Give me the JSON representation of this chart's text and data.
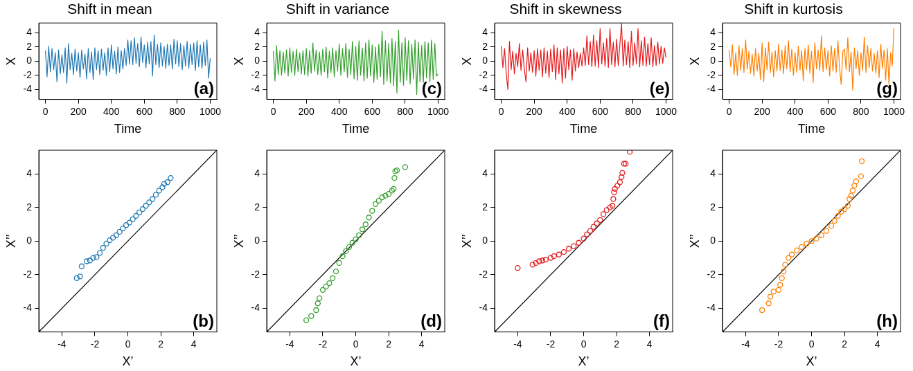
{
  "chart_data": [
    {
      "type": "line",
      "title": "Shift in mean",
      "xlabel": "Time",
      "ylabel": "X",
      "annotations": [
        "(a)"
      ],
      "xlim": [
        -40,
        1040
      ],
      "xticks": [
        0,
        200,
        400,
        600,
        800,
        1000
      ],
      "ylim": [
        -5.4,
        5.4
      ],
      "yticks": [
        -4,
        -2,
        0,
        2,
        4
      ],
      "x": [
        0,
        10,
        20,
        30,
        40,
        50,
        60,
        70,
        80,
        90,
        100,
        110,
        120,
        130,
        140,
        150,
        160,
        170,
        180,
        190,
        200,
        210,
        220,
        230,
        240,
        250,
        260,
        270,
        280,
        290,
        300,
        310,
        320,
        330,
        340,
        350,
        360,
        370,
        380,
        390,
        400,
        410,
        420,
        430,
        440,
        450,
        460,
        470,
        480,
        490,
        500,
        510,
        520,
        530,
        540,
        550,
        560,
        570,
        580,
        590,
        600,
        610,
        620,
        630,
        640,
        650,
        660,
        670,
        680,
        690,
        700,
        710,
        720,
        730,
        740,
        750,
        760,
        770,
        780,
        790,
        800,
        810,
        820,
        830,
        840,
        850,
        860,
        870,
        880,
        890,
        900,
        910,
        920,
        930,
        940,
        950,
        960,
        970,
        980,
        990,
        1000
      ],
      "series": [
        {
          "color": "#1f78b4",
          "values": [
            1.5,
            -2.2,
            2.1,
            -1.5,
            1.8,
            -1.2,
            1.2,
            -2.9,
            1.6,
            -1.8,
            0.9,
            -1.6,
            1.9,
            -3.1,
            2.5,
            -1.2,
            1.1,
            -1.9,
            1.7,
            -1.4,
            1.2,
            -2.3,
            1.6,
            -1.1,
            1.0,
            -2.5,
            1.8,
            -1.6,
            1.3,
            -2.6,
            1.9,
            -1.2,
            1.5,
            -1.9,
            1.7,
            -1.3,
            1.2,
            -2.0,
            1.9,
            -1.5,
            2.3,
            -1.1,
            1.4,
            -1.8,
            2.0,
            -1.6,
            1.5,
            -1.1,
            1.8,
            -0.6,
            3.0,
            -0.4,
            2.9,
            -0.5,
            3.3,
            -0.3,
            2.5,
            -0.8,
            3.4,
            -0.2,
            2.3,
            -0.9,
            2.7,
            -0.4,
            2.8,
            -2.1,
            3.7,
            -0.5,
            2.4,
            -0.9,
            2.6,
            -0.7,
            2.1,
            -1.0,
            2.4,
            -0.6,
            2.3,
            -1.1,
            3.1,
            -0.4,
            2.9,
            -0.8,
            2.5,
            -1.2,
            2.2,
            -0.7,
            2.8,
            -1.0,
            2.4,
            -0.5,
            2.6,
            -1.3,
            2.9,
            -0.8,
            2.3,
            -1.0,
            2.7,
            -0.6,
            3.0,
            -2.4,
            0.4
          ]
        }
      ]
    },
    {
      "type": "line",
      "title": "Shift in variance",
      "xlabel": "Time",
      "ylabel": "X",
      "annotations": [
        "(c)"
      ],
      "xlim": [
        -40,
        1040
      ],
      "xticks": [
        0,
        200,
        400,
        600,
        800,
        1000
      ],
      "ylim": [
        -5.4,
        5.4
      ],
      "yticks": [
        -4,
        -2,
        0,
        2,
        4
      ],
      "x": [
        0,
        10,
        20,
        30,
        40,
        50,
        60,
        70,
        80,
        90,
        100,
        110,
        120,
        130,
        140,
        150,
        160,
        170,
        180,
        190,
        200,
        210,
        220,
        230,
        240,
        250,
        260,
        270,
        280,
        290,
        300,
        310,
        320,
        330,
        340,
        350,
        360,
        370,
        380,
        390,
        400,
        410,
        420,
        430,
        440,
        450,
        460,
        470,
        480,
        490,
        500,
        510,
        520,
        530,
        540,
        550,
        560,
        570,
        580,
        590,
        600,
        610,
        620,
        630,
        640,
        650,
        660,
        670,
        680,
        690,
        700,
        710,
        720,
        730,
        740,
        750,
        760,
        770,
        780,
        790,
        800,
        810,
        820,
        830,
        840,
        850,
        860,
        870,
        880,
        890,
        900,
        910,
        920,
        930,
        940,
        950,
        960,
        970,
        980,
        990,
        1000
      ],
      "series": [
        {
          "color": "#33a02c",
          "values": [
            1.4,
            -2.8,
            2.2,
            -1.9,
            1.5,
            -2.0,
            1.3,
            -1.7,
            1.6,
            -2.1,
            1.9,
            -1.6,
            1.4,
            -2.0,
            1.7,
            -1.5,
            1.2,
            -1.8,
            1.5,
            -1.9,
            1.8,
            -2.1,
            1.5,
            -1.7,
            2.6,
            -1.4,
            1.6,
            -1.9,
            1.3,
            -2.0,
            1.7,
            -1.5,
            2.0,
            -2.4,
            1.4,
            -1.6,
            1.9,
            -2.2,
            1.5,
            -1.4,
            2.4,
            -2.0,
            1.8,
            -1.5,
            2.5,
            -2.3,
            1.7,
            -1.9,
            2.8,
            -2.5,
            2.1,
            -2.7,
            2.9,
            -2.0,
            1.9,
            -2.8,
            2.6,
            -2.4,
            3.0,
            -2.1,
            2.3,
            -3.0,
            2.0,
            -2.6,
            2.4,
            -2.2,
            4.2,
            -3.3,
            2.9,
            -2.8,
            2.5,
            -3.1,
            3.2,
            -3.5,
            2.8,
            -4.5,
            4.4,
            -3.0,
            2.6,
            -3.4,
            3.3,
            -2.7,
            2.9,
            -3.2,
            2.4,
            -2.5,
            3.0,
            -4.7,
            2.7,
            -2.9,
            2.2,
            -3.0,
            2.8,
            -2.4,
            2.6,
            -2.9,
            3.0,
            -2.6,
            2.5,
            -2.1,
            -1.8
          ]
        }
      ]
    },
    {
      "type": "line",
      "title": "Shift in skewness",
      "xlabel": "Time",
      "ylabel": "X",
      "annotations": [
        "(e)"
      ],
      "xlim": [
        -40,
        1040
      ],
      "xticks": [
        0,
        200,
        400,
        600,
        800,
        1000
      ],
      "ylim": [
        -5.4,
        5.4
      ],
      "yticks": [
        -4,
        -2,
        0,
        2,
        4
      ],
      "x": [
        0,
        10,
        20,
        30,
        40,
        50,
        60,
        70,
        80,
        90,
        100,
        110,
        120,
        130,
        140,
        150,
        160,
        170,
        180,
        190,
        200,
        210,
        220,
        230,
        240,
        250,
        260,
        270,
        280,
        290,
        300,
        310,
        320,
        330,
        340,
        350,
        360,
        370,
        380,
        390,
        400,
        410,
        420,
        430,
        440,
        450,
        460,
        470,
        480,
        490,
        500,
        510,
        520,
        530,
        540,
        550,
        560,
        570,
        580,
        590,
        600,
        610,
        620,
        630,
        640,
        650,
        660,
        670,
        680,
        690,
        700,
        710,
        720,
        730,
        740,
        750,
        760,
        770,
        780,
        790,
        800,
        810,
        820,
        830,
        840,
        850,
        860,
        870,
        880,
        890,
        900,
        910,
        920,
        930,
        940,
        950,
        960,
        970,
        980,
        990,
        1000
      ],
      "series": [
        {
          "color": "#e31a1c",
          "values": [
            2.1,
            -0.9,
            1.8,
            -1.6,
            -4.0,
            2.8,
            -1.2,
            1.4,
            -1.8,
            1.1,
            -0.8,
            2.5,
            -1.3,
            1.6,
            -1.1,
            -2.9,
            1.9,
            -1.4,
            1.2,
            -1.6,
            1.5,
            -2.1,
            1.8,
            -1.3,
            1.6,
            -2.2,
            1.9,
            -1.7,
            1.4,
            -2.3,
            1.7,
            -1.5,
            2.3,
            -2.6,
            1.9,
            -1.8,
            1.6,
            -3.1,
            1.8,
            -2.4,
            2.1,
            -1.2,
            1.6,
            -2.7,
            1.8,
            -1.4,
            1.3,
            -0.9,
            1.1,
            -0.7,
            1.9,
            -0.6,
            3.6,
            -0.5,
            2.8,
            -0.8,
            3.7,
            -0.7,
            2.9,
            -0.9,
            4.6,
            -0.4,
            2.6,
            -0.7,
            3.2,
            -0.9,
            4.6,
            -0.5,
            2.7,
            -0.8,
            3.1,
            -0.6,
            2.4,
            5.3,
            -0.7,
            3.0,
            -0.5,
            2.8,
            -0.9,
            4.2,
            -0.6,
            2.6,
            -0.4,
            4.6,
            -0.8,
            2.9,
            -0.6,
            3.4,
            -0.7,
            2.5,
            -0.5,
            3.3,
            -0.8,
            2.2,
            -0.6,
            2.7,
            -0.4,
            2.1,
            -0.3,
            1.9,
            0.5
          ]
        }
      ]
    },
    {
      "type": "line",
      "title": "Shift in kurtosis",
      "xlabel": "Time",
      "ylabel": "X",
      "annotations": [
        "(g)"
      ],
      "xlim": [
        -40,
        1040
      ],
      "xticks": [
        0,
        200,
        400,
        600,
        800,
        1000
      ],
      "ylim": [
        -5.4,
        5.4
      ],
      "yticks": [
        -4,
        -2,
        0,
        2,
        4
      ],
      "x": [
        0,
        10,
        20,
        30,
        40,
        50,
        60,
        70,
        80,
        90,
        100,
        110,
        120,
        130,
        140,
        150,
        160,
        170,
        180,
        190,
        200,
        210,
        220,
        230,
        240,
        250,
        260,
        270,
        280,
        290,
        300,
        310,
        320,
        330,
        340,
        350,
        360,
        370,
        380,
        390,
        400,
        410,
        420,
        430,
        440,
        450,
        460,
        470,
        480,
        490,
        500,
        510,
        520,
        530,
        540,
        550,
        560,
        570,
        580,
        590,
        600,
        610,
        620,
        630,
        640,
        650,
        660,
        670,
        680,
        690,
        700,
        710,
        720,
        730,
        740,
        750,
        760,
        770,
        780,
        790,
        800,
        810,
        820,
        830,
        840,
        850,
        860,
        870,
        880,
        890,
        900,
        910,
        920,
        930,
        940,
        950,
        960,
        970,
        980,
        990,
        1000
      ],
      "series": [
        {
          "color": "#ff7f00",
          "values": [
            1.6,
            -0.8,
            2.3,
            -1.9,
            1.2,
            -2.0,
            2.2,
            -1.3,
            1.8,
            -1.6,
            3.0,
            -1.1,
            1.4,
            -1.7,
            1.0,
            -2.1,
            1.8,
            -1.4,
            1.1,
            -2.6,
            2.6,
            -2.9,
            1.9,
            -1.2,
            2.7,
            -1.6,
            1.3,
            -2.2,
            1.5,
            -1.4,
            2.4,
            -1.3,
            1.6,
            -1.8,
            2.2,
            -1.1,
            2.9,
            -1.5,
            1.7,
            -2.0,
            1.2,
            -1.6,
            2.1,
            -1.3,
            1.5,
            -2.8,
            1.8,
            -1.2,
            2.3,
            -1.7,
            1.4,
            -3.0,
            2.6,
            -1.1,
            1.6,
            -1.3,
            3.6,
            -1.5,
            1.9,
            -1.2,
            1.5,
            -2.1,
            2.2,
            -1.4,
            1.8,
            -1.6,
            2.9,
            -0.9,
            -3.3,
            1.4,
            1.7,
            -1.2,
            3.3,
            -1.5,
            1.3,
            -4.1,
            1.9,
            -1.1,
            1.5,
            -2.0,
            1.2,
            -1.3,
            3.4,
            -1.6,
            2.2,
            -0.9,
            1.8,
            -1.4,
            1.1,
            -1.7,
            1.5,
            -2.3,
            2.4,
            -1.0,
            1.6,
            -2.7,
            1.8,
            -3.3,
            1.2,
            -0.6,
            4.7
          ]
        }
      ]
    },
    {
      "type": "scatter",
      "xlabel": "X’",
      "ylabel": "X’’",
      "annotations": [
        "(b)"
      ],
      "xlim": [
        -5.4,
        5.4
      ],
      "xticks": [
        -4,
        -2,
        0,
        2,
        4
      ],
      "ylim": [
        -5.4,
        5.4
      ],
      "yticks": [
        -4,
        -2,
        0,
        2,
        4
      ],
      "series": [
        {
          "color": "#1f78b4",
          "marker": "circle",
          "x": [
            -3.1,
            -2.9,
            -2.8,
            -2.5,
            -2.3,
            -2.1,
            -1.9,
            -1.7,
            -1.5,
            -1.3,
            -1.1,
            -0.9,
            -0.7,
            -0.5,
            -0.3,
            -0.1,
            0.1,
            0.3,
            0.5,
            0.7,
            0.9,
            1.1,
            1.3,
            1.5,
            1.7,
            1.9,
            2.1,
            2.2,
            2.4,
            2.6
          ],
          "values": [
            -2.2,
            -2.1,
            -1.5,
            -1.2,
            -1.15,
            -1.0,
            -0.95,
            -0.7,
            -0.4,
            -0.15,
            0.05,
            0.2,
            0.35,
            0.55,
            0.75,
            0.95,
            1.1,
            1.3,
            1.5,
            1.7,
            1.9,
            2.1,
            2.3,
            2.5,
            2.75,
            3.0,
            3.2,
            3.4,
            3.5,
            3.75
          ]
        },
        {
          "type": "line",
          "color": "#000000",
          "x": [
            -5.4,
            5.4
          ],
          "values": [
            -5.4,
            5.4
          ]
        }
      ]
    },
    {
      "type": "scatter",
      "xlabel": "X’",
      "ylabel": "X’’",
      "annotations": [
        "(d)"
      ],
      "xlim": [
        -5.4,
        5.4
      ],
      "xticks": [
        -4,
        -2,
        0,
        2,
        4
      ],
      "ylim": [
        -5.4,
        5.4
      ],
      "yticks": [
        -4,
        -2,
        0,
        2,
        4
      ],
      "series": [
        {
          "color": "#33a02c",
          "marker": "circle",
          "x": [
            -3.0,
            -2.7,
            -2.4,
            -2.3,
            -2.2,
            -2.0,
            -1.8,
            -1.6,
            -1.4,
            -1.2,
            -1.0,
            -0.8,
            -0.6,
            -0.4,
            -0.2,
            0,
            0.2,
            0.4,
            0.6,
            0.8,
            1.0,
            1.2,
            1.4,
            1.6,
            1.8,
            2.0,
            2.2,
            2.3,
            2.35,
            2.4,
            2.5,
            3.0
          ],
          "values": [
            -4.7,
            -4.45,
            -4.1,
            -3.7,
            -3.4,
            -2.9,
            -2.7,
            -2.5,
            -2.2,
            -1.8,
            -1.3,
            -0.9,
            -0.6,
            -0.35,
            -0.1,
            0.1,
            0.35,
            0.7,
            1.0,
            1.4,
            1.8,
            2.2,
            2.4,
            2.6,
            2.7,
            2.8,
            3.0,
            3.1,
            3.75,
            4.15,
            4.2,
            4.4
          ]
        },
        {
          "type": "line",
          "color": "#000000",
          "x": [
            -5.4,
            5.4
          ],
          "values": [
            -5.4,
            5.4
          ]
        }
      ]
    },
    {
      "type": "scatter",
      "xlabel": "X’",
      "ylabel": "X’’",
      "annotations": [
        "(f)"
      ],
      "xlim": [
        -5.4,
        5.4
      ],
      "xticks": [
        -4,
        -2,
        0,
        2,
        4
      ],
      "ylim": [
        -5.4,
        5.4
      ],
      "yticks": [
        -4,
        -2,
        0,
        2,
        4
      ],
      "series": [
        {
          "color": "#e31a1c",
          "marker": "circle",
          "x": [
            -4.0,
            -3.1,
            -2.9,
            -2.7,
            -2.5,
            -2.3,
            -2.0,
            -1.8,
            -1.5,
            -1.2,
            -0.9,
            -0.6,
            -0.3,
            0,
            0.2,
            0.4,
            0.6,
            0.8,
            1.0,
            1.2,
            1.4,
            1.6,
            1.75,
            1.8,
            1.85,
            1.9,
            2.05,
            2.2,
            2.3,
            2.35,
            2.45,
            2.55,
            2.8
          ],
          "values": [
            -1.6,
            -1.4,
            -1.3,
            -1.2,
            -1.15,
            -1.1,
            -1.0,
            -0.9,
            -0.8,
            -0.65,
            -0.45,
            -0.3,
            -0.1,
            0.15,
            0.4,
            0.6,
            0.85,
            1.05,
            1.25,
            1.6,
            1.85,
            2.0,
            2.1,
            2.5,
            2.9,
            3.1,
            3.3,
            3.5,
            3.8,
            4.05,
            4.6,
            4.6,
            5.3
          ]
        },
        {
          "type": "line",
          "color": "#000000",
          "x": [
            -5.4,
            5.4
          ],
          "values": [
            -5.4,
            5.4
          ]
        }
      ]
    },
    {
      "type": "scatter",
      "xlabel": "X’",
      "ylabel": "X’’",
      "annotations": [
        "(h)"
      ],
      "xlim": [
        -5.4,
        5.4
      ],
      "xticks": [
        -4,
        -2,
        0,
        2,
        4
      ],
      "ylim": [
        -5.4,
        5.4
      ],
      "yticks": [
        -4,
        -2,
        0,
        2,
        4
      ],
      "series": [
        {
          "color": "#ff7f00",
          "marker": "circle",
          "x": [
            -3.0,
            -2.6,
            -2.5,
            -2.3,
            -2.0,
            -1.9,
            -1.8,
            -1.7,
            -1.6,
            -1.4,
            -1.2,
            -0.9,
            -0.6,
            -0.3,
            0,
            0.3,
            0.6,
            0.9,
            1.2,
            1.4,
            1.6,
            1.8,
            2.0,
            2.2,
            2.3,
            2.4,
            2.5,
            2.6,
            2.7,
            3.0,
            3.05
          ],
          "values": [
            -4.1,
            -3.7,
            -3.3,
            -3.0,
            -2.9,
            -2.6,
            -2.2,
            -1.8,
            -1.4,
            -1.0,
            -0.8,
            -0.55,
            -0.35,
            -0.15,
            0,
            0.15,
            0.35,
            0.6,
            0.9,
            1.2,
            1.5,
            1.75,
            1.9,
            2.1,
            2.5,
            2.7,
            3.0,
            3.3,
            3.55,
            3.85,
            4.75
          ]
        },
        {
          "type": "line",
          "color": "#000000",
          "x": [
            -5.4,
            5.4
          ],
          "values": [
            -5.4,
            5.4
          ]
        }
      ]
    }
  ]
}
